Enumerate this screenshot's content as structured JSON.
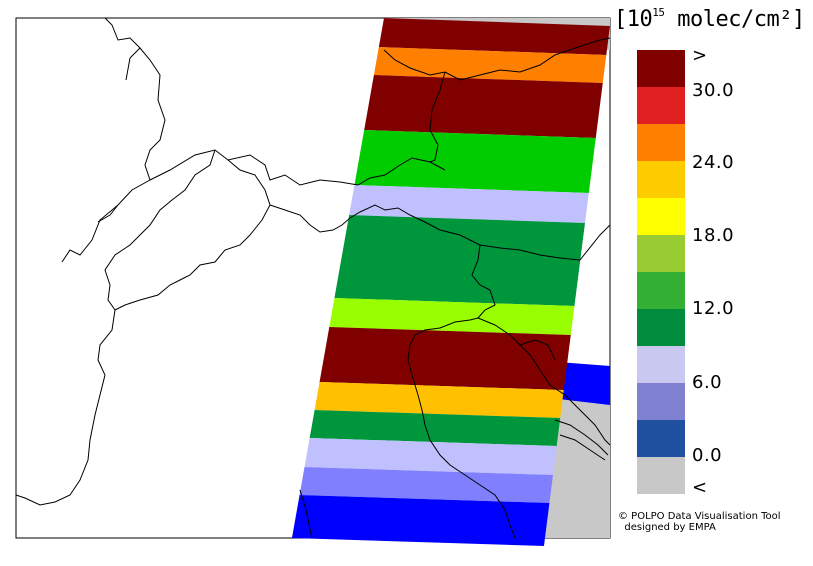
{
  "unit_label": {
    "prefix": "[10",
    "exponent": "15",
    "suffix": " molec/cm²]"
  },
  "legend": {
    "colors": [
      "#800000",
      "#e02020",
      "#ff8000",
      "#ffcc00",
      "#ffff00",
      "#99cc33",
      "#33b033",
      "#008c3c",
      "#c8c8f0",
      "#8080d0",
      "#2050a0",
      "#c8c8c8"
    ],
    "labels": [
      ">",
      "30.0",
      "24.0",
      "18.0",
      "12.0",
      "6.0",
      "0.0",
      "<"
    ]
  },
  "swath_bands": [
    {
      "color": "#800000"
    },
    {
      "color": "#ff8000"
    },
    {
      "color": "#800000"
    },
    {
      "color": "#00cc00"
    },
    {
      "color": "#c0c0ff"
    },
    {
      "color": "#00963c"
    },
    {
      "color": "#99ff00"
    },
    {
      "color": "#800000"
    },
    {
      "color": "#ffc000"
    },
    {
      "color": "#00963c"
    },
    {
      "color": "#c0c0ff"
    },
    {
      "color": "#8080ff"
    },
    {
      "color": "#0000ff"
    }
  ],
  "credit": {
    "line1": "© POLPO Data Visualisation Tool",
    "line2": "  designed by EMPA"
  }
}
